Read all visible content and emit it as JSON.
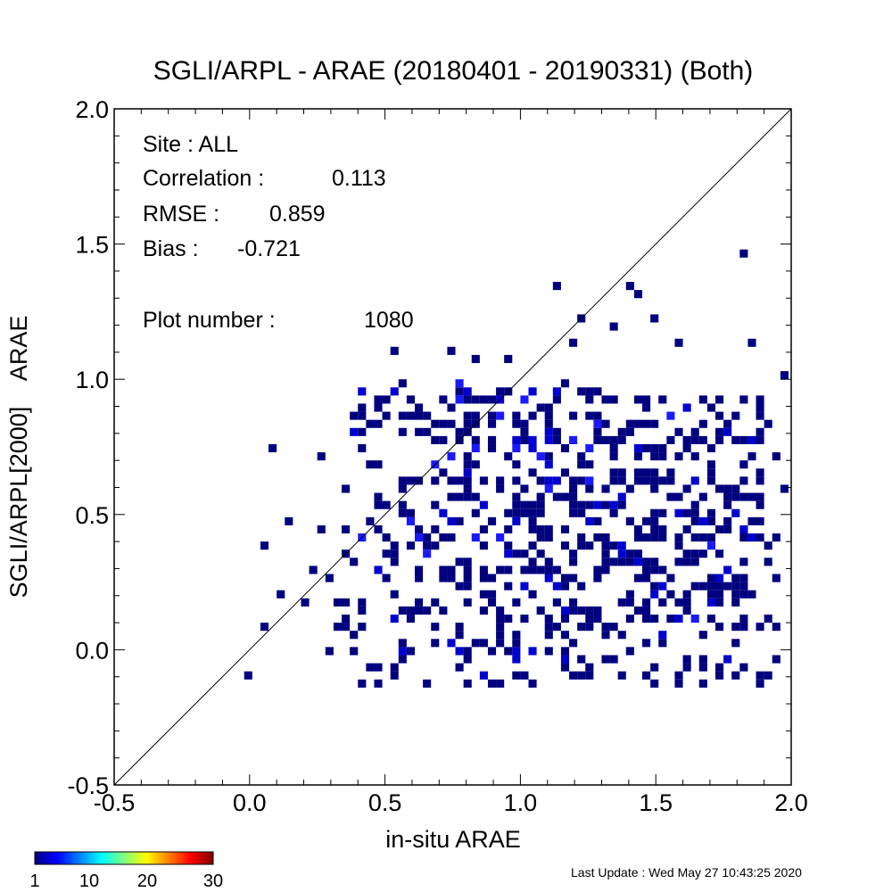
{
  "chart_data": {
    "type": "heatmap",
    "title": "SGLI/ARPL - ARAE (20180401 - 20190331) (Both)",
    "xlabel": "in-situ ARAE",
    "ylabel": "SGLI/ARPL[2000]    ARAE",
    "xlim": [
      -0.5,
      2.0
    ],
    "ylim": [
      -0.5,
      2.0
    ],
    "x_ticks": [
      "-0.5",
      "0.0",
      "0.5",
      "1.0",
      "1.5",
      "2.0"
    ],
    "y_ticks": [
      "-0.5",
      "0.0",
      "0.5",
      "1.0",
      "1.5",
      "2.0"
    ],
    "one_to_one_line": true,
    "grid": false,
    "stats": {
      "site": "Site : ALL",
      "correlation_label": "Correlation :",
      "correlation_value": "0.113",
      "rmse_label": "RMSE :",
      "rmse_value": "0.859",
      "bias_label": "Bias :",
      "bias_value": "-0.721",
      "plot_number_label": "Plot number :",
      "plot_number_value": "1080"
    },
    "colorbar": {
      "min": 1,
      "max": 30,
      "tick_labels": [
        "1",
        "10",
        "20",
        "30"
      ],
      "colormap": "jet"
    },
    "points_approx": [
      [
        -0.01,
        -0.09
      ],
      [
        0.06,
        0.38
      ],
      [
        0.09,
        0.75
      ],
      [
        0.13,
        0.48
      ],
      [
        0.1,
        0.21
      ],
      [
        0.04,
        0.08
      ],
      [
        0.19,
        0.16
      ],
      [
        0.25,
        0.7
      ],
      [
        0.25,
        0.45
      ],
      [
        0.22,
        0.28
      ],
      [
        0.32,
        0.16
      ],
      [
        0.3,
        0.25
      ],
      [
        0.31,
        0.08
      ],
      [
        0.36,
        0.08
      ],
      [
        0.4,
        0.08
      ],
      [
        0.38,
        0.87
      ],
      [
        0.42,
        0.87
      ],
      [
        0.47,
        0.92
      ],
      [
        0.53,
        1.1
      ],
      [
        0.56,
        0.86
      ],
      [
        0.3,
        -0.01
      ],
      [
        0.39,
        -0.01
      ],
      [
        0.42,
        -0.12
      ],
      [
        0.48,
        -0.12
      ],
      [
        0.47,
        -0.07
      ],
      [
        0.61,
        0.8
      ],
      [
        0.74,
        1.1
      ],
      [
        0.84,
        1.07
      ],
      [
        0.96,
        1.07
      ],
      [
        0.87,
        0.92
      ],
      [
        0.89,
        0.87
      ],
      [
        0.77,
        0.94
      ],
      [
        0.76,
        0.8
      ],
      [
        1.12,
        1.35
      ],
      [
        1.22,
        1.22
      ],
      [
        1.18,
        1.12
      ],
      [
        1.39,
        1.34
      ],
      [
        1.42,
        1.32
      ],
      [
        1.35,
        1.19
      ],
      [
        1.48,
        1.23
      ],
      [
        1.57,
        1.12
      ],
      [
        1.82,
        1.47
      ],
      [
        1.84,
        1.13
      ],
      [
        1.97,
        1.02
      ],
      [
        1.89,
        0.87
      ],
      [
        1.98,
        0.59
      ],
      [
        1.95,
        0.27
      ],
      [
        1.92,
        0.12
      ],
      [
        1.94,
        -0.03
      ],
      [
        1.87,
        -0.09
      ],
      [
        1.48,
        -0.14
      ],
      [
        1.59,
        -0.12
      ],
      [
        1.66,
        -0.14
      ],
      [
        1.05,
        -0.14
      ],
      [
        0.92,
        -0.12
      ],
      [
        0.82,
        -0.12
      ],
      [
        1.4,
        0.84
      ],
      [
        1.35,
        0.7
      ],
      [
        1.25,
        0.6
      ],
      [
        1.15,
        0.55
      ],
      [
        1.05,
        0.65
      ],
      [
        0.95,
        0.5
      ],
      [
        0.85,
        0.45
      ],
      [
        0.75,
        0.55
      ],
      [
        0.65,
        0.4
      ],
      [
        1.2,
        0.25
      ],
      [
        1.3,
        0.3
      ],
      [
        1.45,
        0.4
      ],
      [
        1.55,
        0.2
      ],
      [
        1.65,
        0.35
      ],
      [
        1.75,
        0.55
      ],
      [
        1.6,
        0.6
      ],
      [
        1.5,
        0.7
      ],
      [
        1.7,
        0.75
      ],
      [
        1.8,
        0.2
      ],
      [
        1.1,
        0.05
      ],
      [
        1.0,
        0.1
      ],
      [
        0.9,
        0.2
      ],
      [
        0.8,
        0.3
      ],
      [
        0.7,
        0.15
      ]
    ]
  },
  "footer": {
    "last_update": "Last Update : Wed May 27 10:43:25 2020"
  },
  "colors": {
    "cell_main": "#00007f",
    "cell_alt": "#0000d0",
    "cell_alt2": "#1a1aff",
    "axis": "#000000",
    "background": "#ffffff"
  }
}
